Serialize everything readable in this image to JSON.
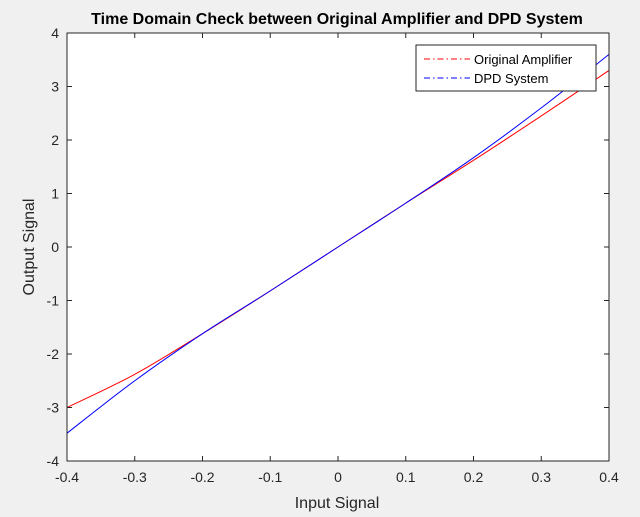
{
  "chart_data": {
    "type": "line",
    "title": "Time Domain Check between Original Amplifier and DPD System",
    "xlabel": "Input Signal",
    "ylabel": "Output Signal",
    "xlim": [
      -0.4,
      0.4
    ],
    "ylim": [
      -4,
      4
    ],
    "xticks": [
      -0.4,
      -0.3,
      -0.2,
      -0.1,
      0,
      0.1,
      0.2,
      0.3,
      0.4
    ],
    "xtick_labels": [
      "-0.4",
      "-0.3",
      "-0.2",
      "-0.1",
      "0",
      "0.1",
      "0.2",
      "0.3",
      "0.4"
    ],
    "yticks": [
      -4,
      -3,
      -2,
      -1,
      0,
      1,
      2,
      3,
      4
    ],
    "ytick_labels": [
      "-4",
      "-3",
      "-2",
      "-1",
      "0",
      "1",
      "2",
      "3",
      "4"
    ],
    "grid": false,
    "legend_position": "top-right",
    "series": [
      {
        "name": "Original Amplifier",
        "color": "#ff0000",
        "legend_style": "dash-dot",
        "x": [
          -0.4,
          -0.3,
          -0.2,
          -0.1,
          0,
          0.1,
          0.2,
          0.3,
          0.4
        ],
        "y": [
          -3.0,
          -2.38,
          -1.62,
          -0.82,
          0,
          0.82,
          1.62,
          2.45,
          3.3
        ]
      },
      {
        "name": "DPD System",
        "color": "#0000ff",
        "legend_style": "dash-dot",
        "x": [
          -0.4,
          -0.3,
          -0.2,
          -0.1,
          0,
          0.1,
          0.2,
          0.3,
          0.4
        ],
        "y": [
          -3.48,
          -2.5,
          -1.62,
          -0.82,
          0,
          0.82,
          1.67,
          2.6,
          3.6
        ]
      }
    ]
  },
  "colors": {
    "figure_background": "#f0f0f0",
    "axes_background": "#ffffff",
    "axes_color": "#262626"
  }
}
